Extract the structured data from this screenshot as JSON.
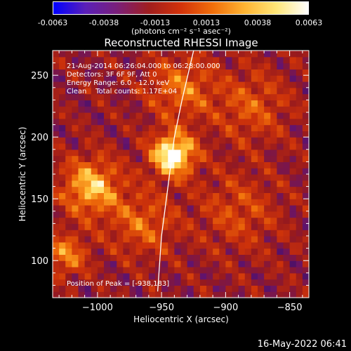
{
  "colorbar": {
    "ticks": [
      "-0.0063",
      "-0.0038",
      "-0.0013",
      "0.0013",
      "0.0038",
      "0.0063"
    ],
    "units": "(photons cm⁻² s⁻¹ asec⁻²)",
    "range": [
      -0.0063,
      0.0063
    ],
    "colors": [
      "#0000ff",
      "#5a1fb8",
      "#7a1f7a",
      "#a01e1e",
      "#d2320a",
      "#f06e0a",
      "#ffb432",
      "#ffe678",
      "#ffffff"
    ]
  },
  "title": "Reconstructed RHESSI Image",
  "info": {
    "time_range": "21-Aug-2014 06:26:04.000 to 06:28:00.000",
    "detectors": "Detectors: 3F 6F 9F, Att 0",
    "energy": "Energy Range: 6.0 - 12.0 keV",
    "clean": "Clean    Total counts: 1.17E+04",
    "peak": "Position of Peak = [-938,183]"
  },
  "footer": "16-May-2022 06:41",
  "chart_data": {
    "type": "heatmap",
    "title": "Reconstructed RHESSI Image",
    "xlabel": "Heliocentric X (arcsec)",
    "ylabel": "Heliocentric Y (arcsec)",
    "xlim": [
      -1035,
      -835
    ],
    "ylim": [
      70,
      270
    ],
    "xticks": [
      -1000,
      -950,
      -900,
      -850
    ],
    "yticks": [
      100,
      150,
      200,
      250
    ],
    "peak": [
      -938,
      183
    ],
    "sources": [
      {
        "x": -941,
        "y": 186,
        "sigma": 12,
        "amp": 1.0
      },
      {
        "x": -1005,
        "y": 160,
        "sigma": 16,
        "amp": 0.7
      },
      {
        "x": -1025,
        "y": 105,
        "sigma": 12,
        "amp": 0.5
      },
      {
        "x": -935,
        "y": 240,
        "sigma": 18,
        "amp": 0.45
      },
      {
        "x": -880,
        "y": 225,
        "sigma": 20,
        "amp": 0.35
      },
      {
        "x": -965,
        "y": 130,
        "sigma": 18,
        "amp": 0.4
      },
      {
        "x": -890,
        "y": 140,
        "sigma": 22,
        "amp": 0.3
      }
    ],
    "limb": [
      [
        -925,
        270
      ],
      [
        -934,
        230
      ],
      [
        -940,
        200
      ],
      [
        -945,
        160
      ],
      [
        -950,
        120
      ],
      [
        -953,
        75
      ]
    ]
  }
}
